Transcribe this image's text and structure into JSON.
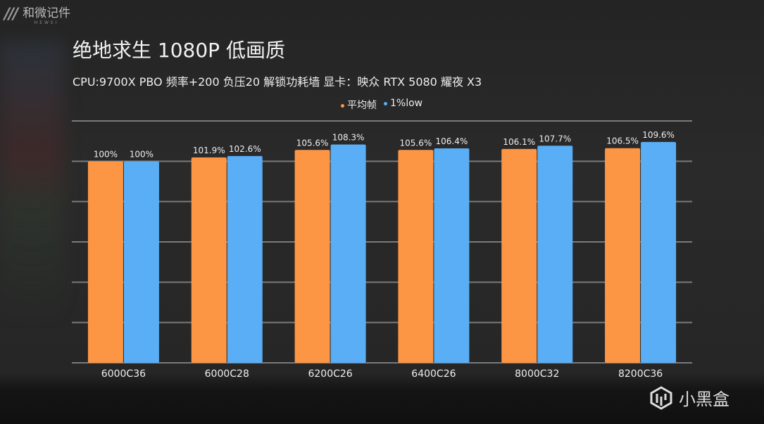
{
  "branding": {
    "logo_text": "和微记件",
    "logo_sub": "HEWEI",
    "watermark": "小黑盒"
  },
  "chart_data": {
    "type": "bar",
    "title": "绝地求生 1080P 低画质",
    "subtitle": "CPU:9700X PBO 频率+200 负压20 解锁功耗墙 显卡：映众 RTX 5080 耀夜 X3",
    "categories": [
      "6000C36",
      "6000C28",
      "6200C26",
      "6400C26",
      "8000C32",
      "8200C36"
    ],
    "series": [
      {
        "name": "平均帧",
        "color": "#fd9644",
        "values": [
          100,
          101.9,
          105.6,
          105.6,
          106.1,
          106.5
        ],
        "labels": [
          "100%",
          "101.9%",
          "105.6%",
          "105.6%",
          "106.1%",
          "106.5%"
        ]
      },
      {
        "name": "1%low",
        "color": "#59aef5",
        "values": [
          100,
          102.6,
          108.3,
          106.4,
          107.7,
          109.6
        ],
        "labels": [
          "100%",
          "102.6%",
          "108.3%",
          "106.4%",
          "107.7%",
          "109.6%"
        ]
      }
    ],
    "ylim": [
      0,
      120
    ],
    "grid": true,
    "legend": "top-center"
  }
}
